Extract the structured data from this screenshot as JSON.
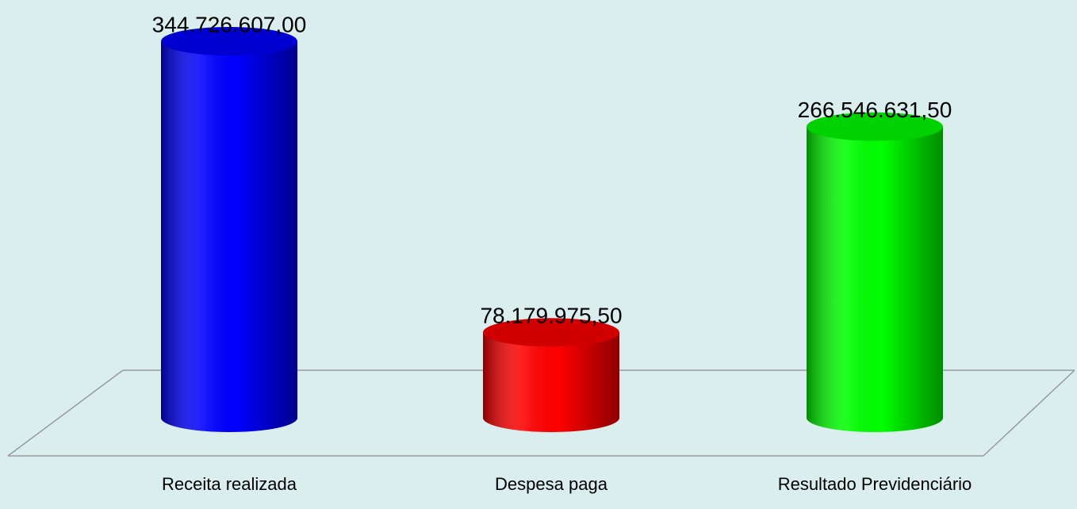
{
  "chart_data": {
    "type": "bar",
    "categories": [
      "Receita realizada",
      "Despesa paga",
      "Resultado Previdenciário"
    ],
    "values": [
      344726607.0,
      78179975.5,
      266546631.5
    ],
    "value_labels": [
      "344.726.607,00",
      "78.179.975,50",
      "266.546.631,50"
    ],
    "colors": [
      "#0000ff",
      "#ff0000",
      "#00ff00"
    ]
  }
}
